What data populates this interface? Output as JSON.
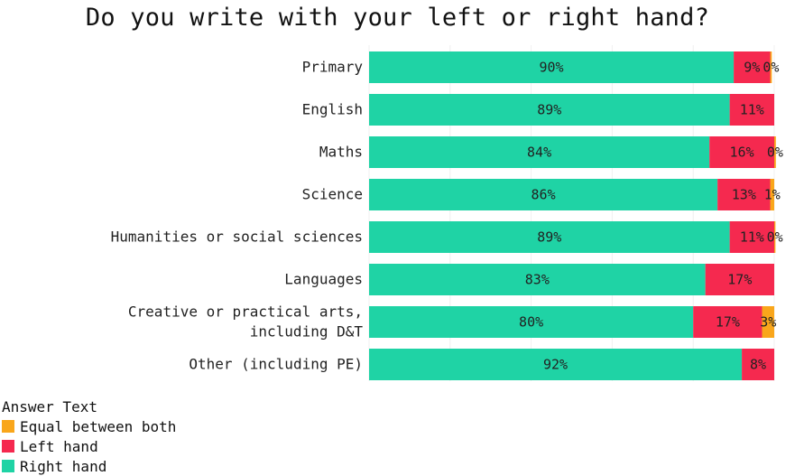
{
  "chart_data": {
    "type": "bar",
    "orientation": "horizontal",
    "stacked": true,
    "title": "Do you write with your left or right hand?",
    "categories": [
      "Primary",
      "English",
      "Maths",
      "Science",
      "Humanities or social sciences",
      "Languages",
      "Creative or practical arts, including D&T",
      "Other (including PE)"
    ],
    "series": [
      {
        "name": "Right hand",
        "color": "#1fd3a5",
        "values": [
          90,
          89,
          84,
          86,
          89,
          83,
          80,
          92
        ],
        "labels": [
          "90%",
          "89%",
          "84%",
          "86%",
          "89%",
          "83%",
          "80%",
          "92%"
        ]
      },
      {
        "name": "Left hand",
        "color": "#f5294f",
        "values": [
          9,
          11,
          16,
          13,
          11,
          17,
          17,
          8
        ],
        "labels": [
          "9%",
          "11%",
          "16%",
          "13%",
          "11%",
          "17%",
          "17%",
          "8%"
        ]
      },
      {
        "name": "Equal between both",
        "color": "#f9a61b",
        "values": [
          0.4,
          0,
          0.4,
          1,
          0.3,
          0,
          3,
          0
        ],
        "labels": [
          "0%",
          "",
          "0%",
          "1%",
          "0%",
          "",
          "3%",
          ""
        ]
      }
    ],
    "xlim": [
      0,
      100
    ],
    "grid": true,
    "legend": {
      "title": "Answer Text",
      "position": "bottom-left",
      "entries": [
        "Equal between both",
        "Left hand",
        "Right hand"
      ]
    }
  }
}
